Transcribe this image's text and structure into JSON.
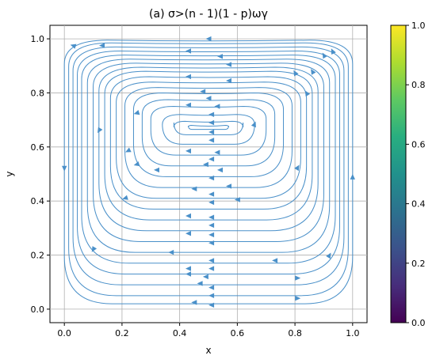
{
  "chart_data": {
    "type": "streamplot",
    "title": "(a) σ>(n - 1)(1 - p)ωγ",
    "xlabel": "x",
    "ylabel": "y",
    "xlim": [
      -0.05,
      1.05
    ],
    "ylim": [
      -0.05,
      1.05
    ],
    "xticks": [
      "0.0",
      "0.2",
      "0.4",
      "0.6",
      "0.8",
      "1.0"
    ],
    "yticks": [
      "0.0",
      "0.2",
      "0.4",
      "0.6",
      "0.8",
      "1.0"
    ],
    "xtick_values": [
      0.0,
      0.2,
      0.4,
      0.6,
      0.8,
      1.0
    ],
    "ytick_values": [
      0.0,
      0.2,
      0.4,
      0.6,
      0.8,
      1.0
    ],
    "grid": true,
    "stream_color": "#4a90c9",
    "colorbar": {
      "colormap": "viridis",
      "range": [
        0.0,
        1.0
      ],
      "ticks": [
        "0.0",
        "0.2",
        "0.4",
        "0.6",
        "0.8",
        "1.0"
      ],
      "tick_values": [
        0.0,
        0.2,
        0.4,
        0.6,
        0.8,
        1.0
      ]
    },
    "streamlines": [
      {
        "y_bottom": 0.02,
        "x_left": 0.0,
        "x_right": 1.0,
        "y_top": 0.995
      },
      {
        "y_bottom": 0.05,
        "x_left": 0.015,
        "x_right": 0.985,
        "y_top": 0.985
      },
      {
        "y_bottom": 0.09,
        "x_left": 0.03,
        "x_right": 0.97,
        "y_top": 0.97
      },
      {
        "y_bottom": 0.13,
        "x_left": 0.045,
        "x_right": 0.955,
        "y_top": 0.955
      },
      {
        "y_bottom": 0.17,
        "x_left": 0.06,
        "x_right": 0.94,
        "y_top": 0.94
      },
      {
        "y_bottom": 0.21,
        "x_left": 0.08,
        "x_right": 0.92,
        "y_top": 0.925
      },
      {
        "y_bottom": 0.25,
        "x_left": 0.1,
        "x_right": 0.9,
        "y_top": 0.91
      },
      {
        "y_bottom": 0.29,
        "x_left": 0.12,
        "x_right": 0.88,
        "y_top": 0.895
      },
      {
        "y_bottom": 0.33,
        "x_left": 0.14,
        "x_right": 0.86,
        "y_top": 0.88
      },
      {
        "y_bottom": 0.37,
        "x_left": 0.16,
        "x_right": 0.84,
        "y_top": 0.86
      },
      {
        "y_bottom": 0.41,
        "x_left": 0.18,
        "x_right": 0.82,
        "y_top": 0.84
      },
      {
        "y_bottom": 0.45,
        "x_left": 0.21,
        "x_right": 0.79,
        "y_top": 0.82
      },
      {
        "y_bottom": 0.49,
        "x_left": 0.24,
        "x_right": 0.76,
        "y_top": 0.8
      },
      {
        "y_bottom": 0.53,
        "x_left": 0.27,
        "x_right": 0.73,
        "y_top": 0.775
      },
      {
        "y_bottom": 0.57,
        "x_left": 0.3,
        "x_right": 0.7,
        "y_top": 0.75
      },
      {
        "y_bottom": 0.61,
        "x_left": 0.34,
        "x_right": 0.66,
        "y_top": 0.72
      },
      {
        "y_bottom": 0.645,
        "x_left": 0.38,
        "x_right": 0.62,
        "y_top": 0.695
      },
      {
        "y_bottom": 0.665,
        "x_left": 0.43,
        "x_right": 0.57,
        "y_top": 0.68
      }
    ],
    "arrows": [
      {
        "x": 0.5,
        "y": 1.0,
        "dx": -1,
        "dy": 0
      },
      {
        "x": 0.13,
        "y": 0.975,
        "dx": -1,
        "dy": 0
      },
      {
        "x": 0.03,
        "y": 0.975,
        "dx": -1,
        "dy": 0.3
      },
      {
        "x": 0.43,
        "y": 0.955,
        "dx": -1,
        "dy": 0
      },
      {
        "x": 0.54,
        "y": 0.935,
        "dx": -1,
        "dy": 0
      },
      {
        "x": 0.57,
        "y": 0.905,
        "dx": -1,
        "dy": 0
      },
      {
        "x": 0.43,
        "y": 0.86,
        "dx": -1,
        "dy": 0
      },
      {
        "x": 0.57,
        "y": 0.845,
        "dx": -1,
        "dy": 0
      },
      {
        "x": 0.93,
        "y": 0.955,
        "dx": -0.5,
        "dy": 1
      },
      {
        "x": 0.9,
        "y": 0.94,
        "dx": -0.6,
        "dy": 1
      },
      {
        "x": 0.8,
        "y": 0.875,
        "dx": -0.6,
        "dy": 1
      },
      {
        "x": 0.86,
        "y": 0.88,
        "dx": -0.6,
        "dy": 1
      },
      {
        "x": 0.84,
        "y": 0.8,
        "dx": -0.6,
        "dy": 1
      },
      {
        "x": 0.48,
        "y": 0.805,
        "dx": -1,
        "dy": 0
      },
      {
        "x": 0.5,
        "y": 0.78,
        "dx": -1,
        "dy": 0
      },
      {
        "x": 0.43,
        "y": 0.755,
        "dx": -1,
        "dy": 0
      },
      {
        "x": 0.53,
        "y": 0.75,
        "dx": -1,
        "dy": 0
      },
      {
        "x": 0.25,
        "y": 0.725,
        "dx": -1,
        "dy": -0.3
      },
      {
        "x": 0.51,
        "y": 0.72,
        "dx": -1,
        "dy": 0
      },
      {
        "x": 0.51,
        "y": 0.69,
        "dx": -1,
        "dy": 0
      },
      {
        "x": 0.66,
        "y": 0.685,
        "dx": 0.4,
        "dy": 1
      },
      {
        "x": 0.51,
        "y": 0.655,
        "dx": -1,
        "dy": 0
      },
      {
        "x": 0.12,
        "y": 0.66,
        "dx": -0.6,
        "dy": -1
      },
      {
        "x": 0.51,
        "y": 0.625,
        "dx": -1,
        "dy": 0
      },
      {
        "x": 0.22,
        "y": 0.585,
        "dx": -1,
        "dy": -0.5
      },
      {
        "x": 0.43,
        "y": 0.585,
        "dx": -1,
        "dy": 0
      },
      {
        "x": 0.53,
        "y": 0.58,
        "dx": -1,
        "dy": 0
      },
      {
        "x": 0.51,
        "y": 0.555,
        "dx": -1,
        "dy": 0
      },
      {
        "x": 0.25,
        "y": 0.535,
        "dx": -1,
        "dy": -0.3
      },
      {
        "x": 0.49,
        "y": 0.535,
        "dx": -1,
        "dy": 0
      },
      {
        "x": 0.54,
        "y": 0.515,
        "dx": -1,
        "dy": 0
      },
      {
        "x": 0.32,
        "y": 0.515,
        "dx": -1,
        "dy": 0
      },
      {
        "x": 0.81,
        "y": 0.525,
        "dx": 0.6,
        "dy": 1
      },
      {
        "x": 0.51,
        "y": 0.485,
        "dx": -1,
        "dy": 0
      },
      {
        "x": 0.57,
        "y": 0.455,
        "dx": -1,
        "dy": 0
      },
      {
        "x": 0.45,
        "y": 0.445,
        "dx": -1,
        "dy": 0
      },
      {
        "x": 0.51,
        "y": 0.425,
        "dx": -1,
        "dy": 0
      },
      {
        "x": 0.21,
        "y": 0.41,
        "dx": -1,
        "dy": -0.3
      },
      {
        "x": 0.6,
        "y": 0.405,
        "dx": -1,
        "dy": 0
      },
      {
        "x": 0.51,
        "y": 0.395,
        "dx": -1,
        "dy": 0
      },
      {
        "x": 0.43,
        "y": 0.345,
        "dx": -1,
        "dy": 0
      },
      {
        "x": 0.51,
        "y": 0.34,
        "dx": -1,
        "dy": 0
      },
      {
        "x": 0.51,
        "y": 0.31,
        "dx": -1,
        "dy": 0
      },
      {
        "x": 0.43,
        "y": 0.28,
        "dx": -1,
        "dy": 0
      },
      {
        "x": 0.51,
        "y": 0.275,
        "dx": -1,
        "dy": 0
      },
      {
        "x": 0.51,
        "y": 0.245,
        "dx": -1,
        "dy": 0
      },
      {
        "x": 0.37,
        "y": 0.21,
        "dx": -1,
        "dy": 0
      },
      {
        "x": 0.1,
        "y": 0.22,
        "dx": -0.6,
        "dy": -1
      },
      {
        "x": 0.92,
        "y": 0.2,
        "dx": 0.6,
        "dy": 1
      },
      {
        "x": 0.51,
        "y": 0.18,
        "dx": -1,
        "dy": 0
      },
      {
        "x": 0.73,
        "y": 0.18,
        "dx": -1,
        "dy": 0
      },
      {
        "x": 0.43,
        "y": 0.15,
        "dx": -1,
        "dy": 0
      },
      {
        "x": 0.51,
        "y": 0.15,
        "dx": -1,
        "dy": 0
      },
      {
        "x": 0.43,
        "y": 0.13,
        "dx": -1,
        "dy": 0
      },
      {
        "x": 0.49,
        "y": 0.12,
        "dx": -1,
        "dy": 0
      },
      {
        "x": 0.81,
        "y": 0.115,
        "dx": 1,
        "dy": 0
      },
      {
        "x": 0.47,
        "y": 0.095,
        "dx": -1,
        "dy": 0
      },
      {
        "x": 0.51,
        "y": 0.08,
        "dx": -1,
        "dy": 0
      },
      {
        "x": 0.51,
        "y": 0.05,
        "dx": -1,
        "dy": 0
      },
      {
        "x": 0.81,
        "y": 0.04,
        "dx": 1,
        "dy": 0
      },
      {
        "x": 0.45,
        "y": 0.025,
        "dx": -1,
        "dy": 0
      },
      {
        "x": 0.51,
        "y": 0.015,
        "dx": -1,
        "dy": 0
      },
      {
        "x": 0.0,
        "y": 0.52,
        "dx": 0,
        "dy": -1
      },
      {
        "x": 1.0,
        "y": 0.49,
        "dx": 0,
        "dy": 1
      }
    ]
  }
}
